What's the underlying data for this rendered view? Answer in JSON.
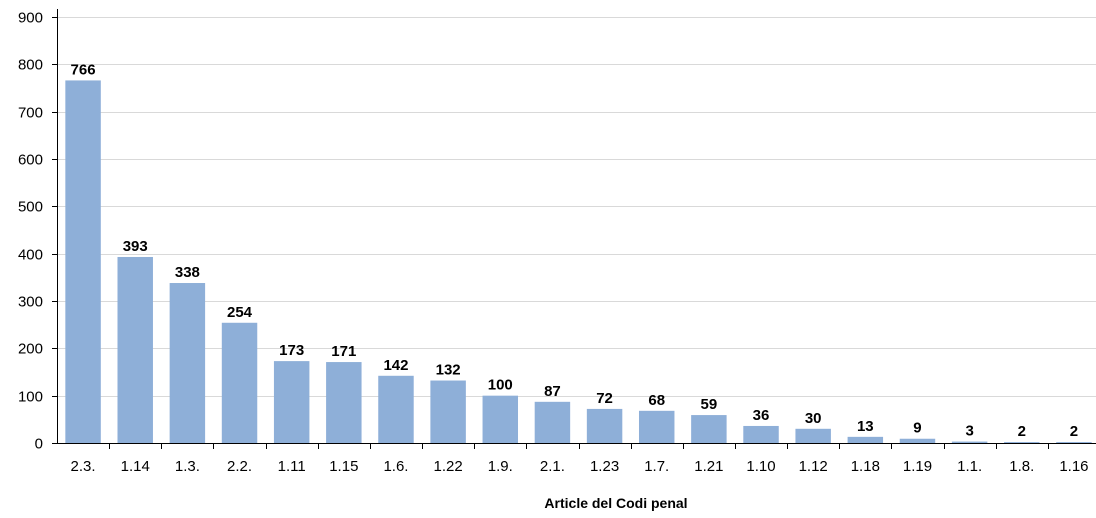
{
  "chart_data": {
    "type": "bar",
    "title": "",
    "xlabel": "Article del Codi penal",
    "ylabel": "",
    "categories": [
      "2.3.",
      "1.14",
      "1.3.",
      "2.2.",
      "1.11",
      "1.15",
      "1.6.",
      "1.22",
      "1.9.",
      "2.1.",
      "1.23",
      "1.7.",
      "1.21",
      "1.10",
      "1.12",
      "1.18",
      "1.19",
      "1.1.",
      "1.8.",
      "1.16"
    ],
    "values": [
      766,
      393,
      338,
      254,
      173,
      171,
      142,
      132,
      100,
      87,
      72,
      68,
      59,
      36,
      30,
      13,
      9,
      3,
      2,
      2
    ],
    "ylim": [
      0,
      900
    ],
    "yticks": [
      0,
      100,
      200,
      300,
      400,
      500,
      600,
      700,
      800,
      900
    ],
    "grid": true,
    "legend": "none",
    "colors": {
      "bar": "#8EAFD8",
      "grid": "#D9D9D9",
      "axis": "#000000",
      "text": "#000000"
    }
  }
}
